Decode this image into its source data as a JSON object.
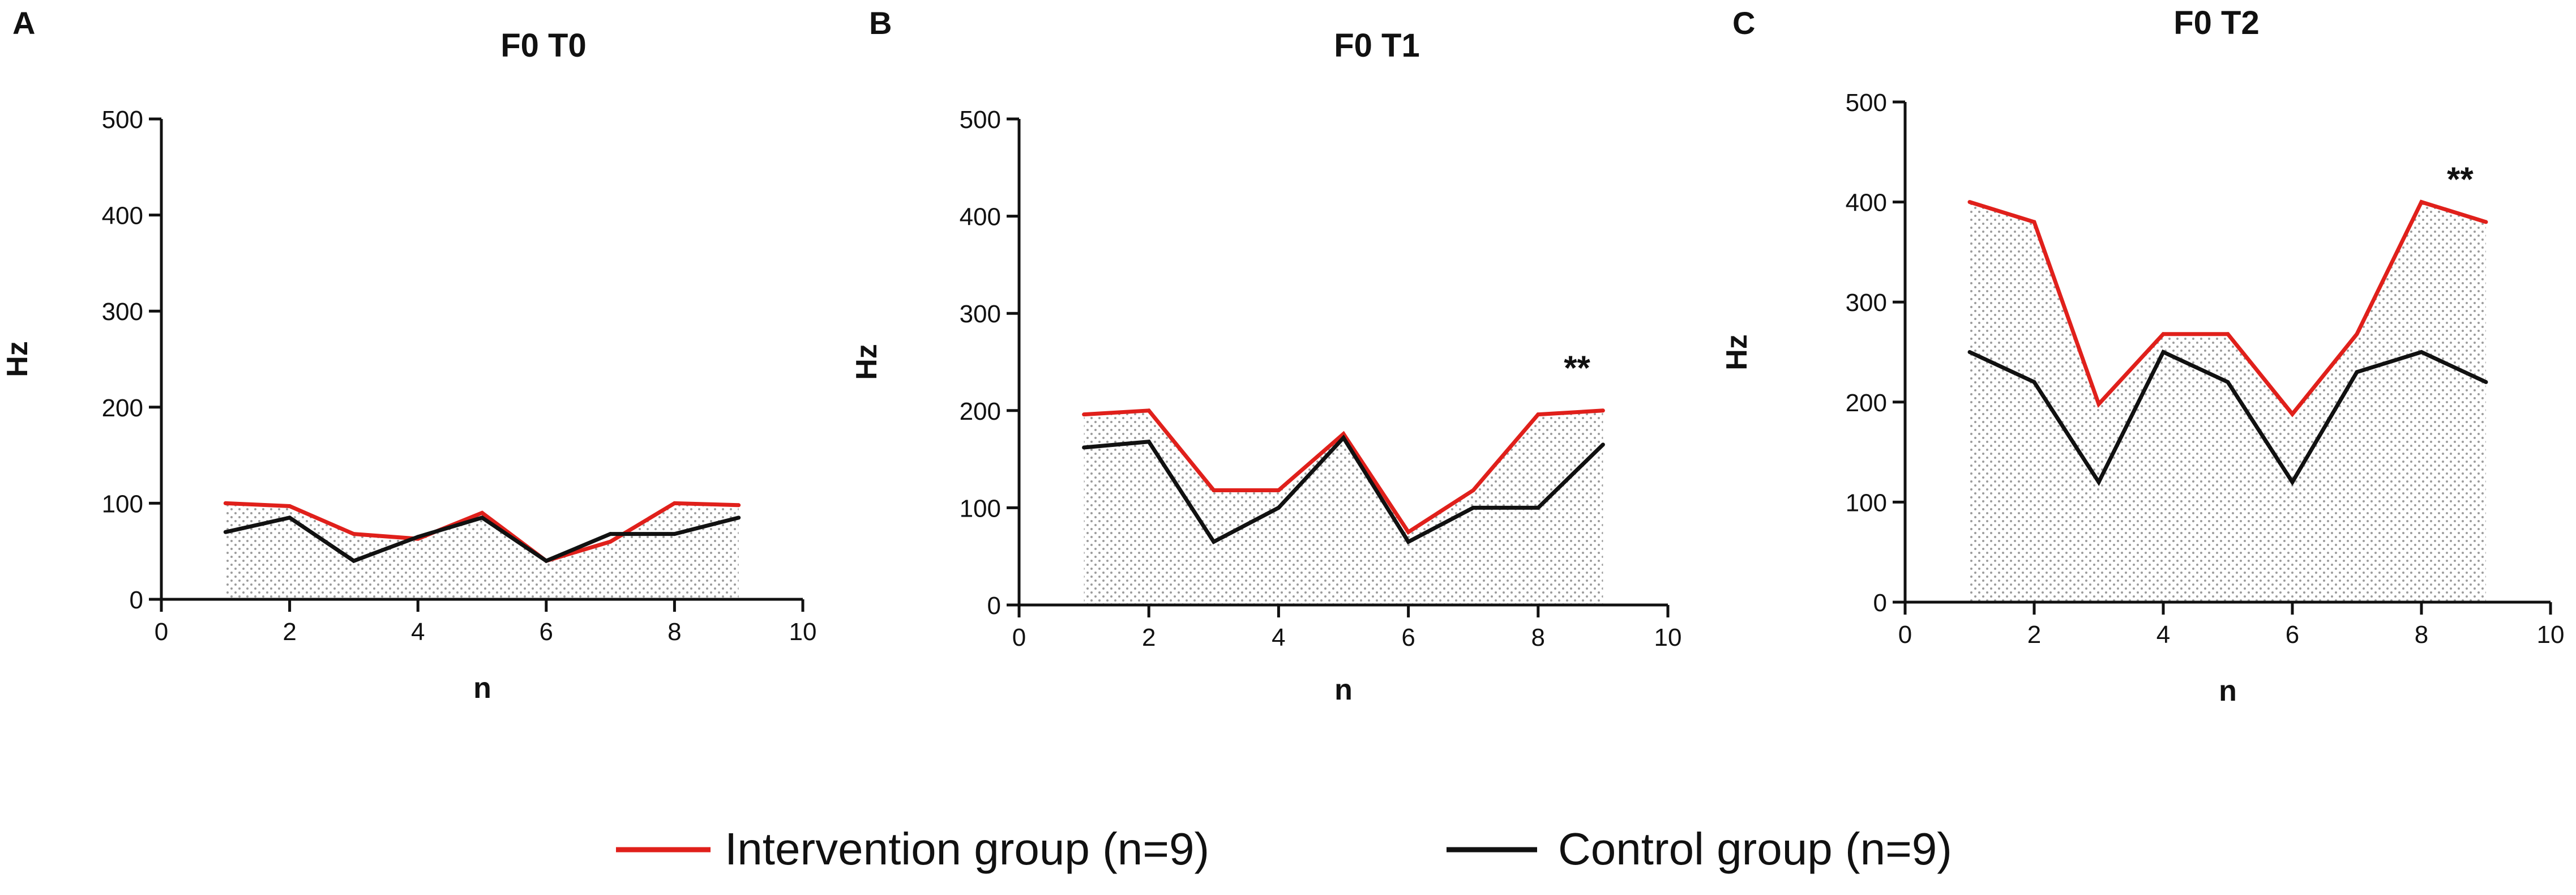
{
  "chart_data": [
    {
      "type": "line",
      "panel_letter": "A",
      "title": "F0 T0",
      "xlabel": "n",
      "ylabel": "Hz",
      "xlim": [
        0,
        10
      ],
      "ylim": [
        0,
        500
      ],
      "xticks": [
        0,
        2,
        4,
        6,
        8,
        10
      ],
      "yticks": [
        0,
        100,
        200,
        300,
        400,
        500
      ],
      "annotation": "",
      "series": [
        {
          "name": "Intervention group (n=9)",
          "color": "#e0201b",
          "x": [
            1,
            2,
            3,
            4,
            5,
            6,
            7,
            8,
            9
          ],
          "values": [
            100,
            97,
            68,
            63,
            90,
            40,
            60,
            100,
            98
          ]
        },
        {
          "name": "Control group (n=9)",
          "color": "#111111",
          "x": [
            1,
            2,
            3,
            4,
            5,
            6,
            7,
            8,
            9
          ],
          "values": [
            70,
            85,
            40,
            65,
            85,
            40,
            68,
            68,
            85
          ]
        }
      ]
    },
    {
      "type": "line",
      "panel_letter": "B",
      "title": "F0 T1",
      "xlabel": "n",
      "ylabel": "Hz",
      "xlim": [
        0,
        10
      ],
      "ylim": [
        0,
        500
      ],
      "xticks": [
        0,
        2,
        4,
        6,
        8,
        10
      ],
      "yticks": [
        0,
        100,
        200,
        300,
        400,
        500
      ],
      "annotation": "**",
      "series": [
        {
          "name": "Intervention group (n=9)",
          "color": "#e0201b",
          "x": [
            1,
            2,
            3,
            4,
            5,
            6,
            7,
            8,
            9
          ],
          "values": [
            196,
            200,
            118,
            118,
            176,
            75,
            118,
            196,
            200
          ]
        },
        {
          "name": "Control group (n=9)",
          "color": "#111111",
          "x": [
            1,
            2,
            3,
            4,
            5,
            6,
            7,
            8,
            9
          ],
          "values": [
            162,
            168,
            65,
            100,
            172,
            65,
            100,
            100,
            165
          ]
        }
      ]
    },
    {
      "type": "line",
      "panel_letter": "C",
      "title": "F0 T2",
      "xlabel": "n",
      "ylabel": "Hz",
      "xlim": [
        0,
        10
      ],
      "ylim": [
        0,
        500
      ],
      "xticks": [
        0,
        2,
        4,
        6,
        8,
        10
      ],
      "yticks": [
        0,
        100,
        200,
        300,
        400,
        500
      ],
      "annotation": "**",
      "series": [
        {
          "name": "Intervention group (n=9)",
          "color": "#e0201b",
          "x": [
            1,
            2,
            3,
            4,
            5,
            6,
            7,
            8,
            9
          ],
          "values": [
            400,
            380,
            198,
            268,
            268,
            188,
            268,
            400,
            380
          ]
        },
        {
          "name": "Control group (n=9)",
          "color": "#111111",
          "x": [
            1,
            2,
            3,
            4,
            5,
            6,
            7,
            8,
            9
          ],
          "values": [
            250,
            220,
            120,
            250,
            220,
            120,
            230,
            250,
            220
          ]
        }
      ]
    }
  ],
  "legend": {
    "placement": "bottom-center",
    "entries": [
      {
        "label": "Intervention group (n=9)",
        "color": "#e0201b"
      },
      {
        "label": "Control group (n=9)",
        "color": "#111111"
      }
    ]
  }
}
